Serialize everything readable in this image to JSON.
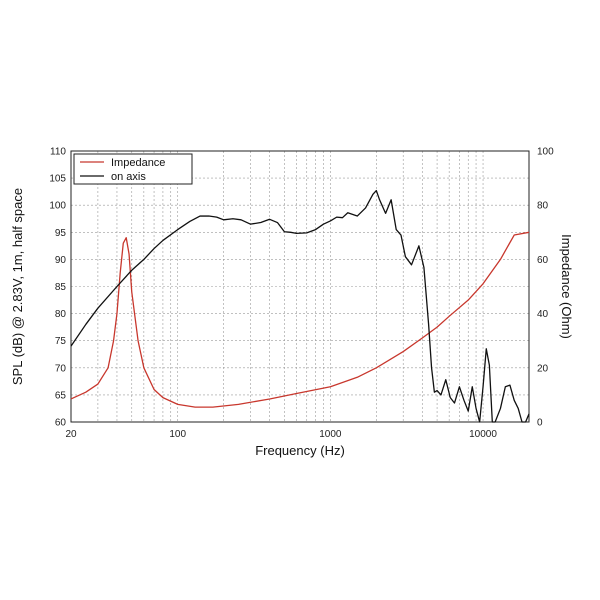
{
  "chart_data": {
    "type": "line",
    "title": "",
    "xlabel": "Frequency (Hz)",
    "ylabel": "SPL (dB) @ 2.83V, 1m, half space",
    "y2label": "Impedance (Ohm)",
    "x_scale": "log",
    "xlim": [
      20,
      20000
    ],
    "ylim": [
      60,
      110
    ],
    "y2lim": [
      0,
      100
    ],
    "x_ticks": [
      "20",
      "100",
      "1000",
      "10000"
    ],
    "y_ticks": [
      "60",
      "65",
      "70",
      "75",
      "80",
      "85",
      "90",
      "95",
      "100",
      "105",
      "110"
    ],
    "y2_ticks": [
      "0",
      "20",
      "40",
      "60",
      "80",
      "100"
    ],
    "grid": true,
    "legend_position": "top-left",
    "series": [
      {
        "name": "Impedance",
        "axis": "right",
        "color": "#c8372d",
        "x": [
          20,
          25,
          30,
          35,
          38,
          40,
          42,
          44,
          46,
          48,
          50,
          55,
          60,
          70,
          80,
          100,
          130,
          170,
          250,
          400,
          600,
          1000,
          1500,
          2000,
          3000,
          4000,
          5000,
          6000,
          8000,
          10000,
          13000,
          16000,
          20000
        ],
        "y": [
          8.5,
          11,
          14,
          20,
          30,
          40,
          55,
          66,
          68,
          62,
          48,
          30,
          20,
          12,
          9,
          6.5,
          5.5,
          5.5,
          6.5,
          8.5,
          10.5,
          13,
          16.5,
          20,
          26,
          31,
          35,
          39,
          45,
          51,
          60,
          69,
          70
        ]
      },
      {
        "name": "on axis",
        "axis": "left",
        "color": "#111111",
        "x": [
          20,
          25,
          30,
          40,
          50,
          60,
          70,
          80,
          100,
          120,
          140,
          160,
          180,
          200,
          230,
          260,
          300,
          350,
          400,
          450,
          500,
          550,
          600,
          700,
          800,
          900,
          1000,
          1100,
          1200,
          1300,
          1500,
          1700,
          1900,
          2000,
          2100,
          2300,
          2500,
          2700,
          2900,
          3100,
          3400,
          3800,
          4100,
          4400,
          4600,
          4800,
          5000,
          5300,
          5700,
          6100,
          6500,
          7000,
          7500,
          8000,
          8500,
          9000,
          9500,
          10000,
          10500,
          11000,
          11500,
          12000,
          13000,
          14000,
          15000,
          16000,
          17000,
          18000,
          19000,
          20000
        ],
        "y": [
          74,
          78,
          81,
          85,
          88,
          90,
          92,
          93.5,
          95.5,
          97,
          98,
          98,
          97.8,
          97.3,
          97.5,
          97.3,
          96.5,
          96.8,
          97.4,
          96.8,
          95.1,
          95.0,
          94.8,
          94.9,
          95.5,
          96.5,
          97.1,
          97.8,
          97.7,
          98.6,
          98.0,
          99.5,
          102.0,
          102.7,
          101.0,
          98.5,
          101.0,
          95.5,
          94.5,
          90.5,
          89.0,
          92.5,
          88.5,
          78.0,
          70.0,
          65.5,
          65.8,
          65.0,
          67.8,
          64.5,
          63.5,
          66.5,
          64.0,
          62.0,
          66.5,
          62.5,
          59.0,
          66.5,
          73.5,
          70.5,
          60.0,
          56.0,
          62.5,
          66.5,
          66.8,
          64.0,
          62.5,
          55.0,
          60.0,
          61.5
        ]
      }
    ]
  }
}
